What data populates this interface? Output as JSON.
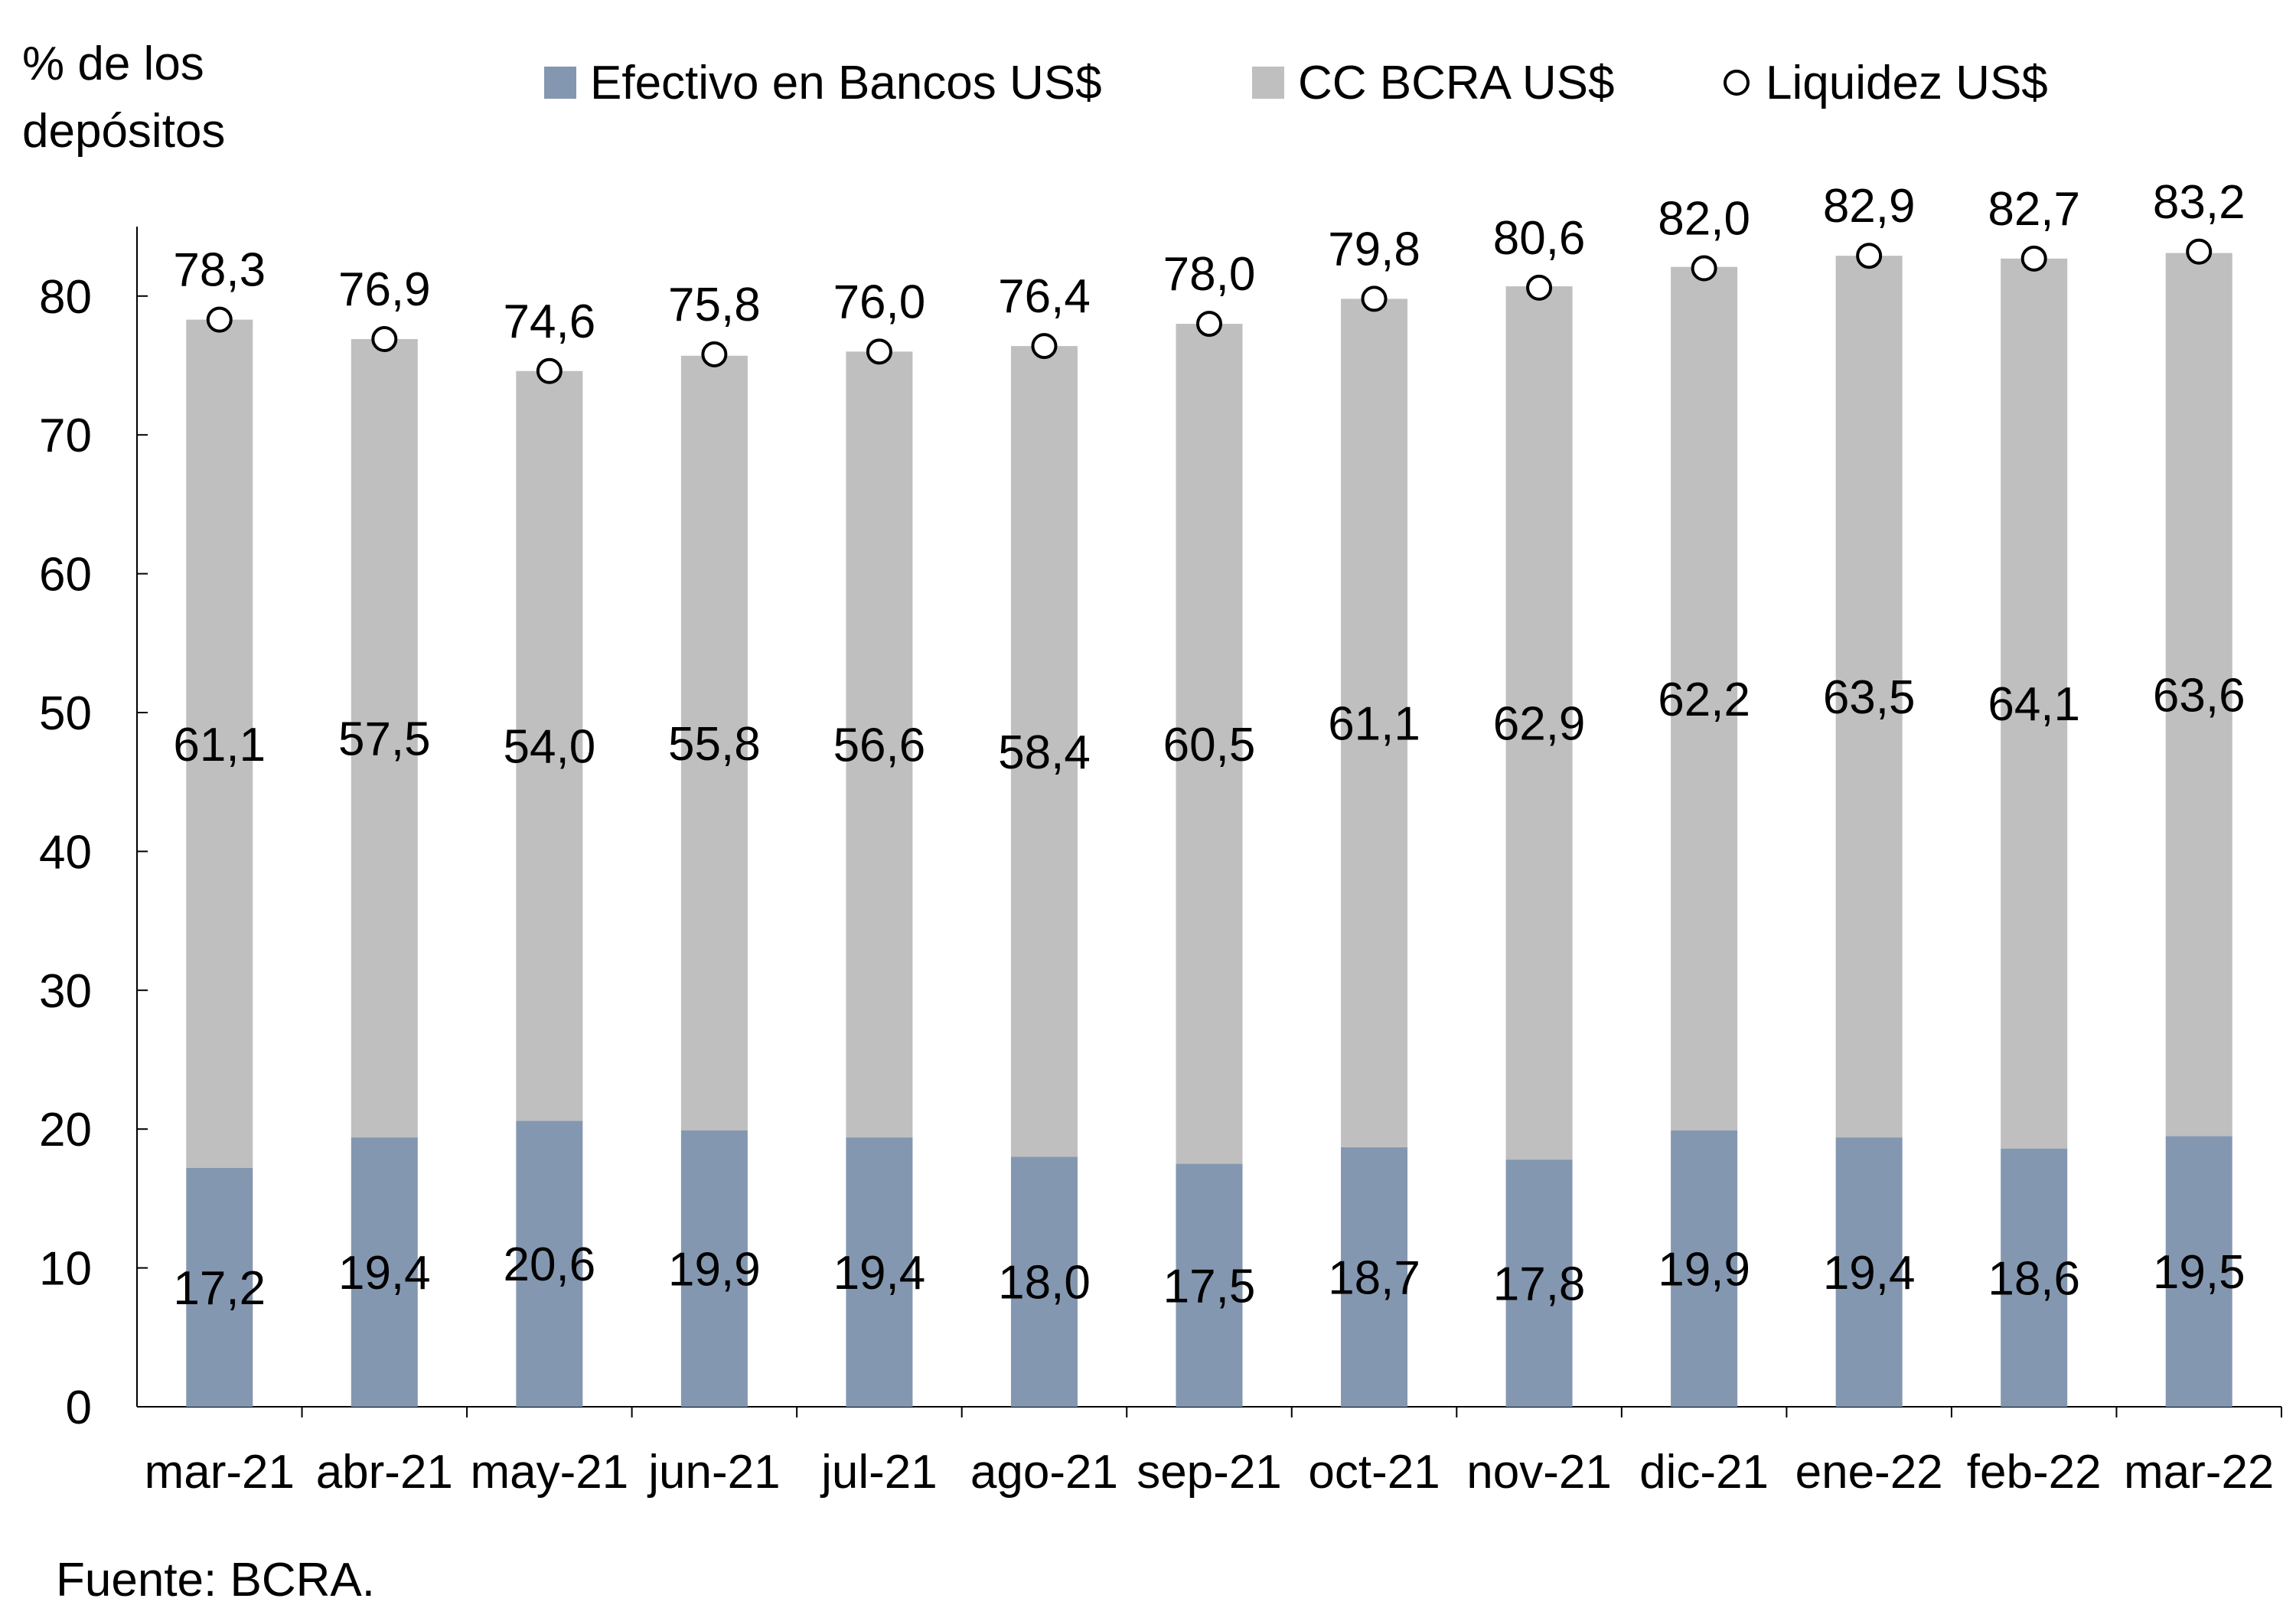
{
  "chart_data": {
    "type": "bar",
    "stacked": true,
    "ylabel": "% de los depósitos",
    "ylabel_lines": [
      "% de los",
      "depósitos"
    ],
    "ylim": [
      0,
      85
    ],
    "yticks": [
      0,
      10,
      20,
      30,
      40,
      50,
      60,
      70,
      80
    ],
    "grid": false,
    "legend_position": "top",
    "categories": [
      "mar-21",
      "abr-21",
      "may-21",
      "jun-21",
      "jul-21",
      "ago-21",
      "sep-21",
      "oct-21",
      "nov-21",
      "dic-21",
      "ene-22",
      "feb-22",
      "mar-22"
    ],
    "series": [
      {
        "name": "Efectivo en Bancos US$",
        "kind": "bar",
        "color": "#8497b0",
        "values": [
          17.2,
          19.4,
          20.6,
          19.9,
          19.4,
          18.0,
          17.5,
          18.7,
          17.8,
          19.9,
          19.4,
          18.6,
          19.5
        ],
        "labels": [
          "17,2",
          "19,4",
          "20,6",
          "19,9",
          "19,4",
          "18,0",
          "17,5",
          "18,7",
          "17,8",
          "19,9",
          "19,4",
          "18,6",
          "19,5"
        ]
      },
      {
        "name": "CC BCRA US$",
        "kind": "bar",
        "color": "#bfbfbf",
        "values": [
          61.1,
          57.5,
          54.0,
          55.8,
          56.6,
          58.4,
          60.5,
          61.1,
          62.9,
          62.2,
          63.5,
          64.1,
          63.6
        ],
        "labels": [
          "61,1",
          "57,5",
          "54,0",
          "55,8",
          "56,6",
          "58,4",
          "60,5",
          "61,1",
          "62,9",
          "62,2",
          "63,5",
          "64,1",
          "63,6"
        ]
      },
      {
        "name": "Liquidez US$",
        "kind": "marker",
        "marker": "open-circle",
        "values": [
          78.3,
          76.9,
          74.6,
          75.8,
          76.0,
          76.4,
          78.0,
          79.8,
          80.6,
          82.0,
          82.9,
          82.7,
          83.2
        ],
        "labels": [
          "78,3",
          "76,9",
          "74,6",
          "75,8",
          "76,0",
          "76,4",
          "78,0",
          "79,8",
          "80,6",
          "82,0",
          "82,9",
          "82,7",
          "83,2"
        ]
      }
    ],
    "source": "Fuente: BCRA."
  }
}
